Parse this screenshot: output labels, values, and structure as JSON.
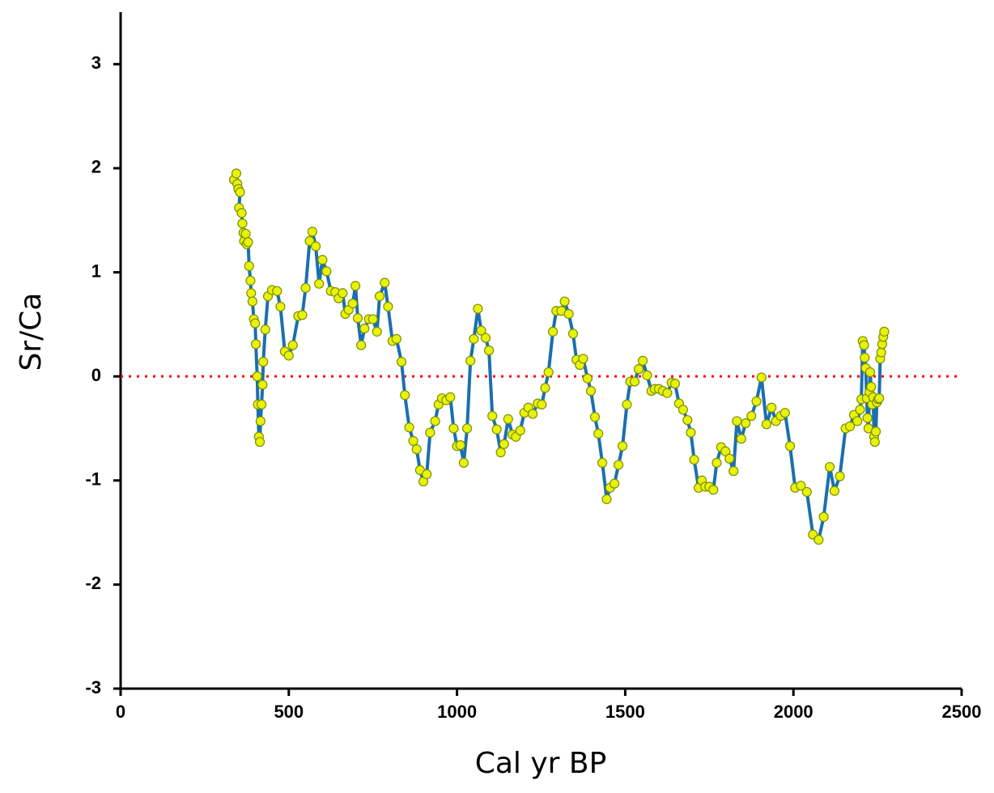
{
  "chart_data": {
    "type": "line",
    "xlabel": "Cal yr BP",
    "ylabel": "Sr/Ca",
    "xlim": [
      0,
      2500
    ],
    "xticks": [
      0,
      500,
      1000,
      1500,
      2000,
      2500
    ],
    "ylim": [
      -3,
      3.5
    ],
    "yticks": [
      -3,
      -2,
      -1,
      0,
      1,
      2,
      3
    ],
    "line_color": "#1a6fb0",
    "marker_color": "#e8f20a",
    "marker_edge_color": "#7c8f00",
    "reference_line": {
      "value": 0,
      "color": "#ff0000"
    },
    "x": [
      337,
      344,
      347,
      350,
      355,
      352,
      360,
      362,
      365,
      367,
      372,
      375,
      379,
      382,
      386,
      388,
      392,
      396,
      400,
      402,
      406,
      408,
      411,
      414,
      416,
      419,
      422,
      424,
      430,
      438,
      450,
      465,
      475,
      488,
      500,
      512,
      528,
      540,
      550,
      562,
      570,
      580,
      590,
      600,
      612,
      625,
      638,
      648,
      660,
      668,
      678,
      690,
      698,
      705,
      715,
      725,
      738,
      750,
      762,
      770,
      785,
      795,
      808,
      820,
      835,
      845,
      858,
      870,
      880,
      890,
      900,
      910,
      920,
      935,
      945,
      955,
      968,
      980,
      990,
      1000,
      1010,
      1020,
      1030,
      1040,
      1050,
      1062,
      1072,
      1085,
      1095,
      1105,
      1118,
      1130,
      1140,
      1152,
      1165,
      1175,
      1188,
      1200,
      1212,
      1225,
      1240,
      1252,
      1262,
      1272,
      1285,
      1295,
      1310,
      1320,
      1332,
      1345,
      1355,
      1365,
      1375,
      1388,
      1398,
      1410,
      1420,
      1432,
      1445,
      1455,
      1468,
      1480,
      1492,
      1505,
      1515,
      1528,
      1540,
      1552,
      1565,
      1578,
      1588,
      1600,
      1612,
      1625,
      1638,
      1648,
      1660,
      1672,
      1685,
      1695,
      1705,
      1718,
      1728,
      1738,
      1750,
      1762,
      1772,
      1785,
      1798,
      1810,
      1822,
      1832,
      1845,
      1858,
      1875,
      1890,
      1905,
      1920,
      1935,
      1948,
      1962,
      1975,
      1990,
      2005,
      2022,
      2040,
      2058,
      2075,
      2090,
      2108,
      2122,
      2138,
      2155,
      2168,
      2180,
      2190,
      2198,
      2202,
      2206,
      2210,
      2212,
      2215,
      2218,
      2220,
      2223,
      2226,
      2228,
      2231,
      2234,
      2237,
      2240,
      2242,
      2245,
      2248,
      2252,
      2255,
      2258,
      2261,
      2264,
      2267,
      2270
    ],
    "values": [
      1.89,
      1.95,
      1.85,
      1.8,
      1.77,
      1.62,
      1.57,
      1.47,
      1.38,
      1.3,
      1.37,
      1.27,
      1.29,
      1.06,
      0.92,
      0.8,
      0.72,
      0.55,
      0.51,
      0.31,
      0.0,
      -0.27,
      -0.58,
      -0.63,
      -0.43,
      -0.27,
      -0.08,
      0.14,
      0.45,
      0.77,
      0.83,
      0.82,
      0.67,
      0.24,
      0.2,
      0.3,
      0.58,
      0.59,
      0.85,
      1.3,
      1.39,
      1.25,
      0.89,
      1.12,
      1.01,
      0.82,
      0.81,
      0.75,
      0.8,
      0.6,
      0.64,
      0.7,
      0.87,
      0.56,
      0.3,
      0.46,
      0.55,
      0.55,
      0.43,
      0.77,
      0.9,
      0.67,
      0.34,
      0.36,
      0.14,
      -0.18,
      -0.49,
      -0.62,
      -0.7,
      -0.9,
      -1.01,
      -0.94,
      -0.54,
      -0.43,
      -0.27,
      -0.21,
      -0.23,
      -0.2,
      -0.5,
      -0.67,
      -0.66,
      -0.83,
      -0.5,
      0.15,
      0.36,
      0.65,
      0.44,
      0.37,
      0.25,
      -0.38,
      -0.51,
      -0.73,
      -0.65,
      -0.41,
      -0.56,
      -0.58,
      -0.52,
      -0.35,
      -0.3,
      -0.36,
      -0.26,
      -0.27,
      -0.11,
      0.04,
      0.43,
      0.63,
      0.63,
      0.72,
      0.6,
      0.41,
      0.16,
      0.11,
      0.17,
      -0.02,
      -0.14,
      -0.39,
      -0.55,
      -0.83,
      -1.18,
      -1.07,
      -1.03,
      -0.85,
      -0.67,
      -0.27,
      -0.05,
      -0.05,
      0.07,
      0.15,
      0.01,
      -0.14,
      -0.12,
      -0.12,
      -0.14,
      -0.16,
      -0.06,
      -0.07,
      -0.26,
      -0.32,
      -0.42,
      -0.54,
      -0.8,
      -1.07,
      -1.0,
      -1.06,
      -1.06,
      -1.09,
      -0.83,
      -0.68,
      -0.72,
      -0.79,
      -0.91,
      -0.43,
      -0.6,
      -0.45,
      -0.38,
      -0.24,
      -0.01,
      -0.46,
      -0.3,
      -0.43,
      -0.38,
      -0.35,
      -0.67,
      -1.07,
      -1.05,
      -1.11,
      -1.52,
      -1.57,
      -1.35,
      -0.87,
      -1.1,
      -0.96,
      -0.5,
      -0.48,
      -0.37,
      -0.43,
      -0.32,
      -0.22,
      0.34,
      0.3,
      0.18,
      0.08,
      -0.21,
      -0.4,
      -0.5,
      -0.15,
      0.04,
      -0.1,
      -0.27,
      -0.2,
      -0.58,
      -0.63,
      -0.53,
      -0.25,
      -0.22,
      -0.21,
      0.17,
      0.23,
      0.31,
      0.38,
      0.43
    ]
  }
}
